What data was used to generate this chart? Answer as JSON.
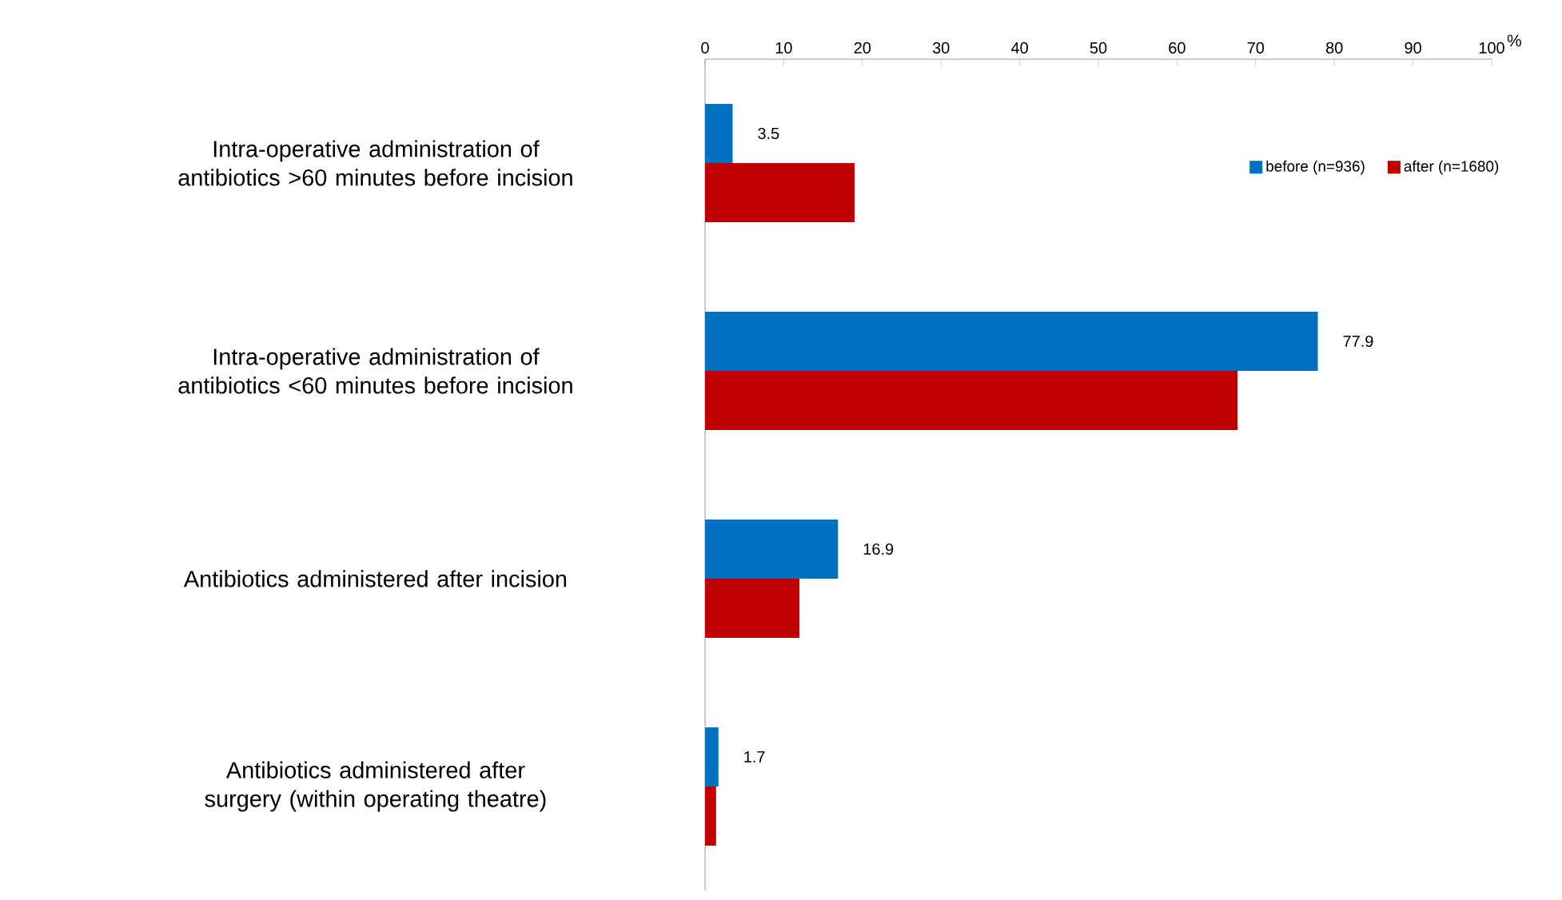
{
  "chart_data": {
    "type": "bar",
    "orientation": "horizontal",
    "categories": [
      "Intra-operative administration of antibiotics >60 minutes before incision",
      "Intra-operative administration of antibiotics <60 minutes before incision",
      "Antibiotics administered after incision",
      "Antibiotics administered after surgery (within operating theatre)"
    ],
    "series": [
      {
        "name": "before (n=936)",
        "color": "#0070c0",
        "values": [
          3.5,
          77.9,
          16.9,
          1.7
        ],
        "value_labels": [
          "3.5",
          "77.9",
          "16.9",
          "1.7"
        ]
      },
      {
        "name": "after (n=1680)",
        "color": "#c00000",
        "values": [
          19.0,
          67.7,
          12.0,
          1.4
        ]
      }
    ],
    "xlabel": "%",
    "xlim": [
      0,
      100
    ],
    "xticks": [
      0,
      10,
      20,
      30,
      40,
      50,
      60,
      70,
      80,
      90,
      100
    ],
    "legend": "top right",
    "grid": false
  }
}
